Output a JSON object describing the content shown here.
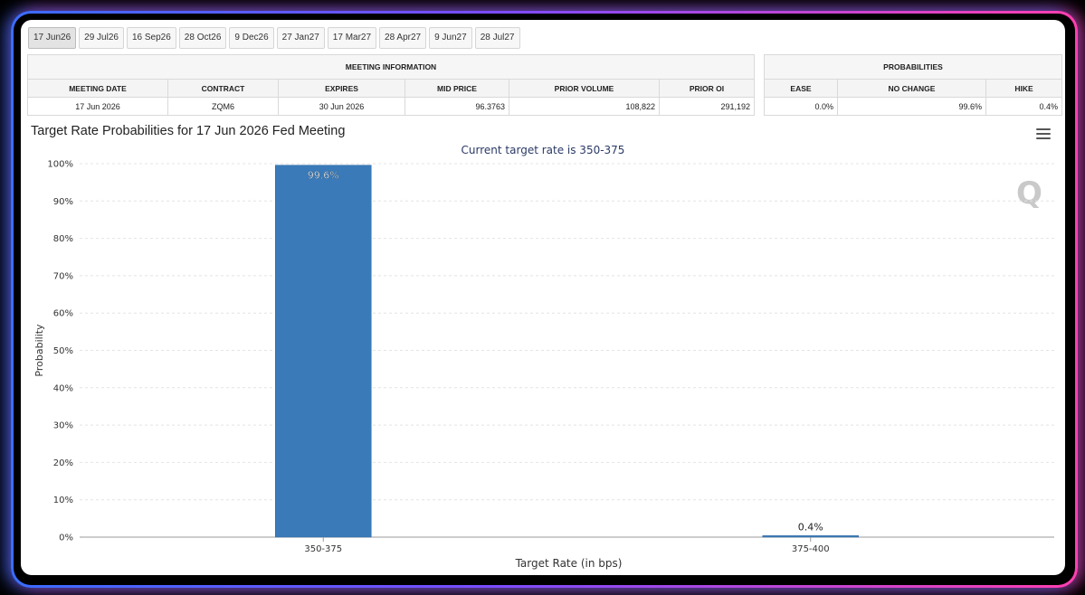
{
  "tabs": [
    "17 Jun26",
    "29 Jul26",
    "16 Sep26",
    "28 Oct26",
    "9 Dec26",
    "27 Jan27",
    "17 Mar27",
    "28 Apr27",
    "9 Jun27",
    "28 Jul27"
  ],
  "active_tab": 0,
  "meeting_info": {
    "title": "MEETING INFORMATION",
    "headers": [
      "MEETING DATE",
      "CONTRACT",
      "EXPIRES",
      "MID PRICE",
      "PRIOR VOLUME",
      "PRIOR OI"
    ],
    "row": [
      "17 Jun 2026",
      "ZQM6",
      "30 Jun 2026",
      "96.3763",
      "108,822",
      "291,192"
    ]
  },
  "probabilities": {
    "title": "PROBABILITIES",
    "headers": [
      "EASE",
      "NO CHANGE",
      "HIKE"
    ],
    "row": [
      "0.0%",
      "99.6%",
      "0.4%"
    ]
  },
  "chart_title": "Target Rate Probabilities for 17 Jun 2026 Fed Meeting",
  "logo_text": "Q",
  "chart_data": {
    "type": "bar",
    "subtitle": "Current target rate is 350-375",
    "categories": [
      "350-375",
      "375-400"
    ],
    "values": [
      99.6,
      0.4
    ],
    "data_labels": [
      "99.6%",
      "0.4%"
    ],
    "xlabel": "Target Rate (in bps)",
    "ylabel": "Probability",
    "ylim": [
      0,
      100
    ],
    "yticks": [
      "0%",
      "10%",
      "20%",
      "30%",
      "40%",
      "50%",
      "60%",
      "70%",
      "80%",
      "90%",
      "100%"
    ],
    "bar_color": "#3a7ab8",
    "grid": true
  }
}
